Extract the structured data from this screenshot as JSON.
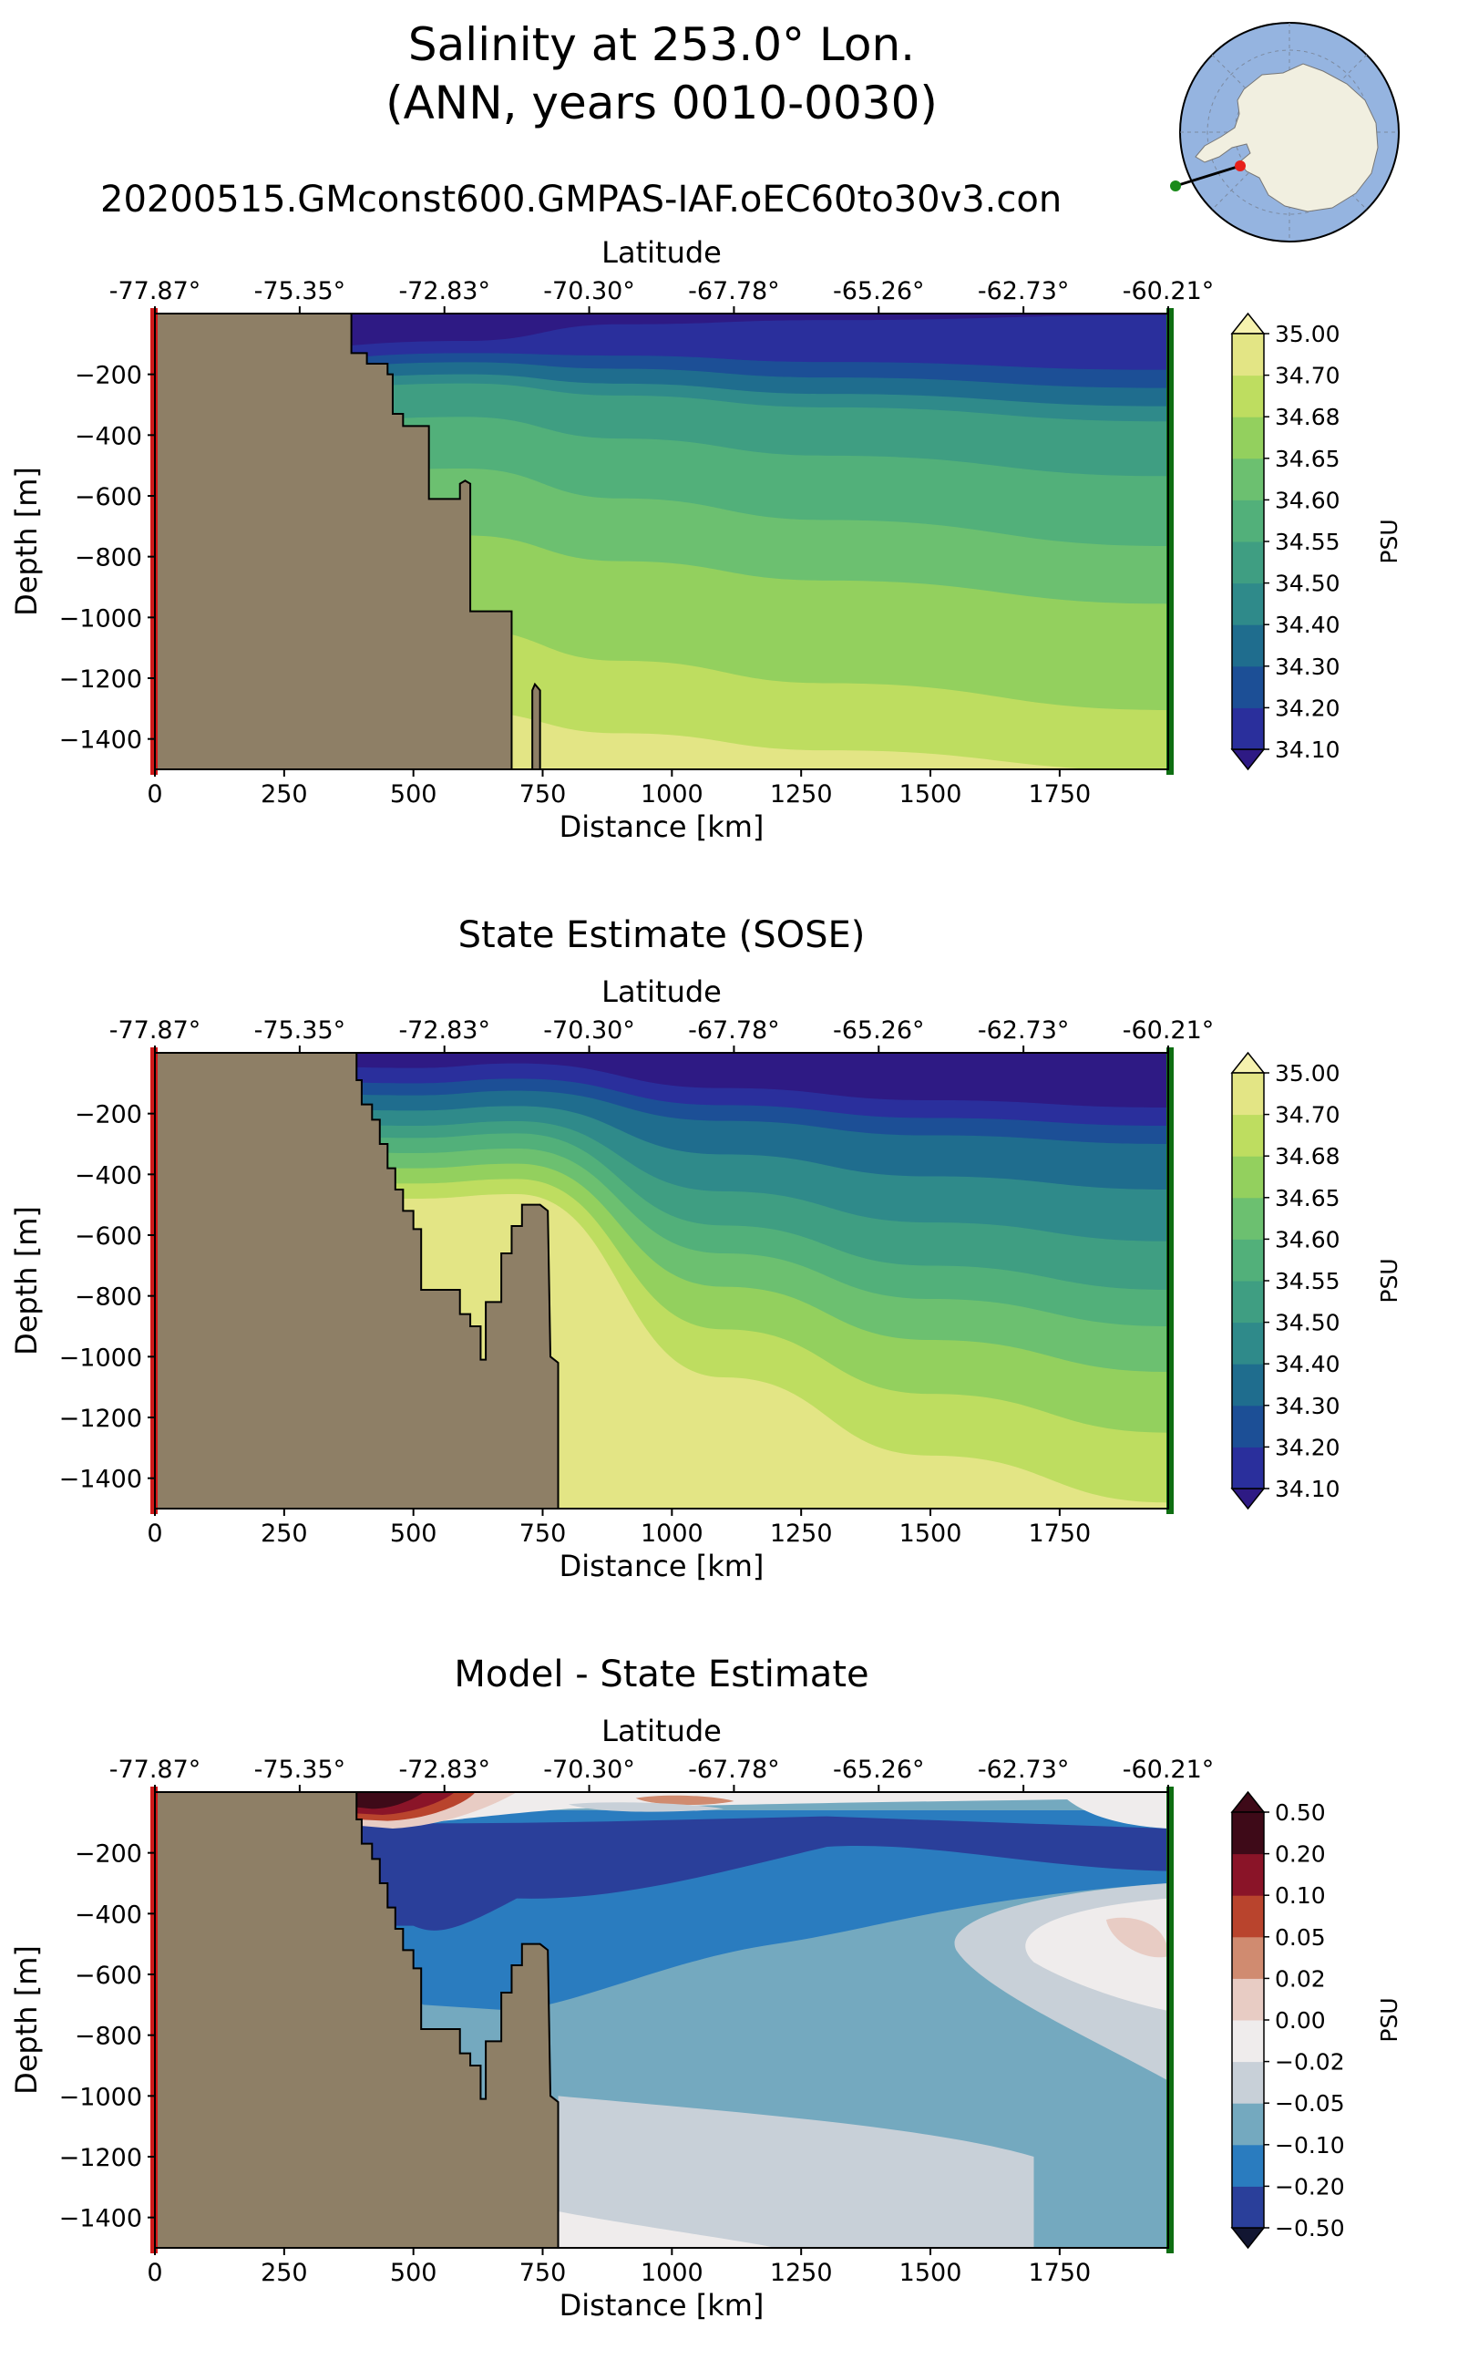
{
  "figure": {
    "title_line1": "Salinity at 253.0° Lon.",
    "title_line2": "(ANN, years 0010-0030)",
    "run_name": "20200515.GMconst600.GMPAS-IAF.oEC60to30v3.con"
  },
  "inset_map": {
    "description_icon": "antarctica-polar-map-icon",
    "colors": {
      "ocean": "#95b4e0",
      "land": "#f1efe0",
      "start_marker": "#e8201a",
      "end_marker": "#1a8a1a"
    }
  },
  "colors": {
    "land": "#8e7f66",
    "start_line": "#d11a1a",
    "end_line": "#0e6e12"
  },
  "chart_data": [
    {
      "type": "contourf",
      "title": "",
      "xlabel": "Distance [km]",
      "ylabel": "Depth [m]",
      "top_xlabel": "Latitude",
      "x_ticks": [
        0,
        250,
        500,
        750,
        1000,
        1250,
        1500,
        1750
      ],
      "x_tick_labels": [
        "0",
        "250",
        "500",
        "750",
        "1000",
        "1250",
        "1500",
        "1750"
      ],
      "top_tick_labels": [
        "-77.87°",
        "-75.35°",
        "-72.83°",
        "-70.30°",
        "-67.78°",
        "-65.26°",
        "-62.73°",
        "-60.21°"
      ],
      "y_ticks": [
        -200,
        -400,
        -600,
        -800,
        -1000,
        -1200,
        -1400
      ],
      "y_tick_labels": [
        "−200",
        "−400",
        "−600",
        "−800",
        "−1000",
        "−1200",
        "−1400"
      ],
      "xlim": [
        0,
        1960
      ],
      "ylim": [
        -1500,
        0
      ],
      "colorbar": {
        "label": "PSU",
        "levels": [
          "34.10",
          "34.20",
          "34.30",
          "34.40",
          "34.50",
          "34.55",
          "34.60",
          "34.65",
          "34.68",
          "34.70",
          "35.00"
        ],
        "colors": [
          "#2e1a84",
          "#2a2f9c",
          "#1c4f96",
          "#1f6d8e",
          "#2f8a8a",
          "#3f9e82",
          "#52b07a",
          "#6cc070",
          "#93d05e",
          "#bedd60",
          "#e3e585",
          "#f6f2ae"
        ],
        "extend": "both"
      },
      "bathymetry": [
        [
          0,
          0
        ],
        [
          380,
          0
        ],
        [
          380,
          -130
        ],
        [
          410,
          -130
        ],
        [
          410,
          -165
        ],
        [
          450,
          -165
        ],
        [
          450,
          -200
        ],
        [
          460,
          -200
        ],
        [
          460,
          -330
        ],
        [
          480,
          -330
        ],
        [
          480,
          -370
        ],
        [
          530,
          -370
        ],
        [
          530,
          -610
        ],
        [
          590,
          -610
        ],
        [
          590,
          -560
        ],
        [
          600,
          -550
        ],
        [
          610,
          -560
        ],
        [
          610,
          -980
        ],
        [
          690,
          -980
        ],
        [
          690,
          -1500
        ],
        [
          730,
          -1500
        ],
        [
          730,
          -1240
        ],
        [
          735,
          -1220
        ],
        [
          745,
          -1240
        ],
        [
          745,
          -1500
        ],
        [
          0,
          -1500
        ]
      ],
      "bands_right_depth": [
        0,
        -180,
        -240,
        -300,
        -350,
        -530,
        -760,
        -950,
        -1300,
        -1500
      ]
    },
    {
      "type": "contourf",
      "title": "State Estimate (SOSE)",
      "xlabel": "Distance [km]",
      "ylabel": "Depth [m]",
      "top_xlabel": "Latitude",
      "x_ticks": [
        0,
        250,
        500,
        750,
        1000,
        1250,
        1500,
        1750
      ],
      "x_tick_labels": [
        "0",
        "250",
        "500",
        "750",
        "1000",
        "1250",
        "1500",
        "1750"
      ],
      "top_tick_labels": [
        "-77.87°",
        "-75.35°",
        "-72.83°",
        "-70.30°",
        "-67.78°",
        "-65.26°",
        "-62.73°",
        "-60.21°"
      ],
      "y_ticks": [
        -200,
        -400,
        -600,
        -800,
        -1000,
        -1200,
        -1400
      ],
      "y_tick_labels": [
        "−200",
        "−400",
        "−600",
        "−800",
        "−1000",
        "−1200",
        "−1400"
      ],
      "xlim": [
        0,
        1960
      ],
      "ylim": [
        -1500,
        0
      ],
      "colorbar": {
        "label": "PSU",
        "levels": [
          "34.10",
          "34.20",
          "34.30",
          "34.40",
          "34.50",
          "34.55",
          "34.60",
          "34.65",
          "34.68",
          "34.70",
          "35.00"
        ],
        "colors": [
          "#2e1a84",
          "#2a2f9c",
          "#1c4f96",
          "#1f6d8e",
          "#2f8a8a",
          "#3f9e82",
          "#52b07a",
          "#6cc070",
          "#93d05e",
          "#bedd60",
          "#e3e585",
          "#f6f2ae"
        ],
        "extend": "both"
      },
      "bathymetry": [
        [
          0,
          0
        ],
        [
          390,
          0
        ],
        [
          390,
          -90
        ],
        [
          400,
          -90
        ],
        [
          400,
          -170
        ],
        [
          420,
          -170
        ],
        [
          420,
          -220
        ],
        [
          435,
          -220
        ],
        [
          435,
          -300
        ],
        [
          450,
          -300
        ],
        [
          450,
          -380
        ],
        [
          465,
          -380
        ],
        [
          465,
          -450
        ],
        [
          480,
          -450
        ],
        [
          480,
          -520
        ],
        [
          500,
          -520
        ],
        [
          500,
          -580
        ],
        [
          515,
          -580
        ],
        [
          515,
          -780
        ],
        [
          590,
          -780
        ],
        [
          590,
          -860
        ],
        [
          610,
          -860
        ],
        [
          610,
          -900
        ],
        [
          630,
          -900
        ],
        [
          630,
          -1010
        ],
        [
          640,
          -1010
        ],
        [
          640,
          -820
        ],
        [
          670,
          -820
        ],
        [
          670,
          -660
        ],
        [
          690,
          -660
        ],
        [
          690,
          -570
        ],
        [
          710,
          -570
        ],
        [
          710,
          -500
        ],
        [
          745,
          -500
        ],
        [
          760,
          -520
        ],
        [
          765,
          -1000
        ],
        [
          780,
          -1020
        ],
        [
          780,
          -1500
        ],
        [
          0,
          -1500
        ]
      ]
    },
    {
      "type": "contourf",
      "title": "Model - State Estimate",
      "xlabel": "Distance [km]",
      "ylabel": "Depth [m]",
      "top_xlabel": "Latitude",
      "x_ticks": [
        0,
        250,
        500,
        750,
        1000,
        1250,
        1500,
        1750
      ],
      "x_tick_labels": [
        "0",
        "250",
        "500",
        "750",
        "1000",
        "1250",
        "1500",
        "1750"
      ],
      "top_tick_labels": [
        "-77.87°",
        "-75.35°",
        "-72.83°",
        "-70.30°",
        "-67.78°",
        "-65.26°",
        "-62.73°",
        "-60.21°"
      ],
      "y_ticks": [
        -200,
        -400,
        -600,
        -800,
        -1000,
        -1200,
        -1400
      ],
      "y_tick_labels": [
        "−200",
        "−400",
        "−600",
        "−800",
        "−1000",
        "−1200",
        "−1400"
      ],
      "xlim": [
        0,
        1960
      ],
      "ylim": [
        -1500,
        0
      ],
      "colorbar": {
        "label": "PSU",
        "levels": [
          "−0.50",
          "−0.20",
          "−0.10",
          "−0.05",
          "−0.02",
          "0.00",
          "0.02",
          "0.05",
          "0.10",
          "0.20",
          "0.50"
        ],
        "colors": [
          "#121632",
          "#2a3f9a",
          "#2a7cbf",
          "#74a9bf",
          "#c8d0d8",
          "#efecec",
          "#e8ccc4",
          "#d08b70",
          "#b9442d",
          "#8a1428",
          "#3e0a18"
        ],
        "extend": "both"
      },
      "bathymetry": [
        [
          0,
          0
        ],
        [
          390,
          0
        ],
        [
          390,
          -90
        ],
        [
          400,
          -90
        ],
        [
          400,
          -170
        ],
        [
          420,
          -170
        ],
        [
          420,
          -220
        ],
        [
          435,
          -220
        ],
        [
          435,
          -300
        ],
        [
          450,
          -300
        ],
        [
          450,
          -380
        ],
        [
          465,
          -380
        ],
        [
          465,
          -450
        ],
        [
          480,
          -450
        ],
        [
          480,
          -520
        ],
        [
          500,
          -520
        ],
        [
          500,
          -580
        ],
        [
          515,
          -580
        ],
        [
          515,
          -780
        ],
        [
          590,
          -780
        ],
        [
          590,
          -860
        ],
        [
          610,
          -860
        ],
        [
          610,
          -900
        ],
        [
          630,
          -900
        ],
        [
          630,
          -1010
        ],
        [
          640,
          -1010
        ],
        [
          640,
          -820
        ],
        [
          670,
          -820
        ],
        [
          670,
          -660
        ],
        [
          690,
          -660
        ],
        [
          690,
          -570
        ],
        [
          710,
          -570
        ],
        [
          710,
          -500
        ],
        [
          745,
          -500
        ],
        [
          760,
          -520
        ],
        [
          765,
          -1000
        ],
        [
          780,
          -1020
        ],
        [
          780,
          -1500
        ],
        [
          0,
          -1500
        ]
      ]
    }
  ]
}
